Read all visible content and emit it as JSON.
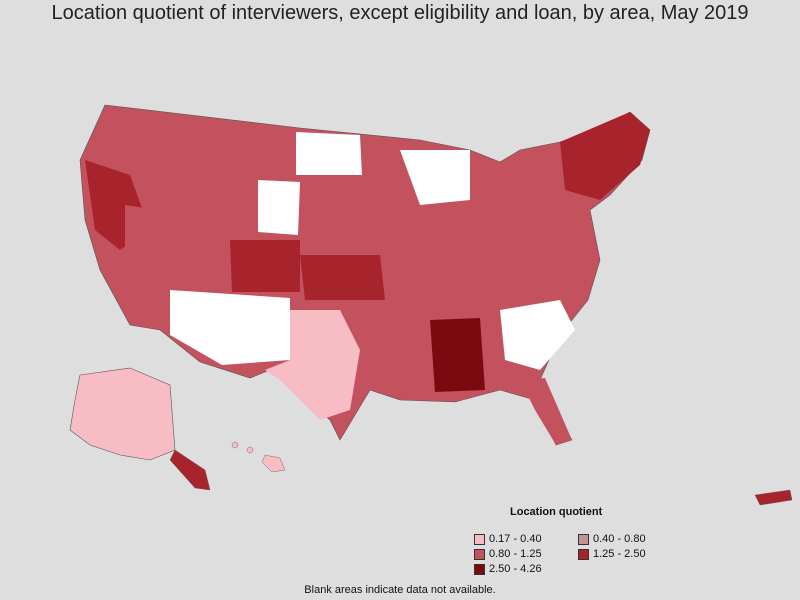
{
  "title": "Location quotient of interviewers, except eligibility and loan, by area, May 2019",
  "legend": {
    "title": "Location quotient",
    "items": [
      {
        "label": "0.17 - 0.40",
        "color": "#f7bcc4"
      },
      {
        "label": "0.40 - 0.80",
        "color": "#c49393"
      },
      {
        "label": "0.80 - 1.25",
        "color": "#c4515e"
      },
      {
        "label": "1.25 - 2.50",
        "color": "#a8242c"
      },
      {
        "label": "2.50 - 4.26",
        "color": "#7a0a10"
      }
    ]
  },
  "footnote": "Blank areas indicate data not available.",
  "colors": {
    "background": "#dedede",
    "no_data": "#ffffff",
    "border": "#555555"
  }
}
